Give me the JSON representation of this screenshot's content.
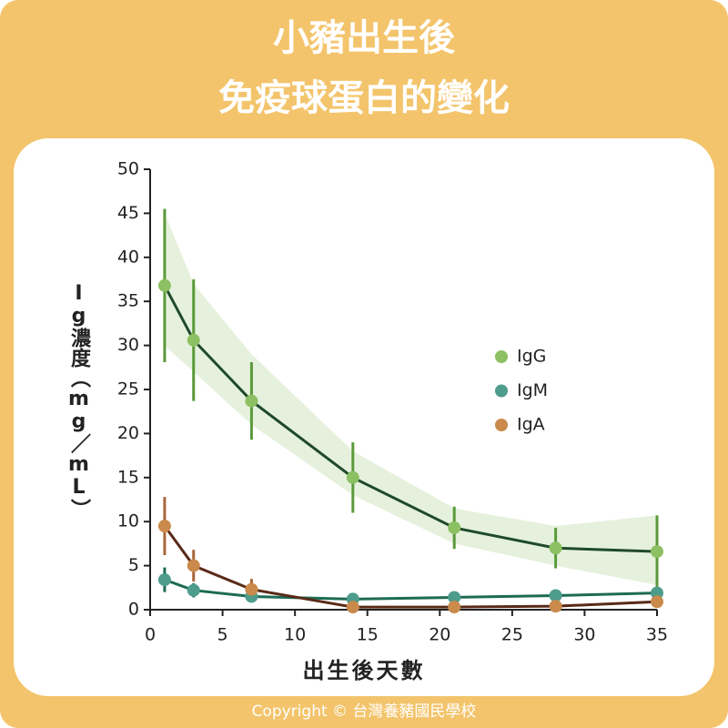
{
  "chart_data": {
    "type": "line",
    "title": "小豬出生後",
    "subtitle": "免疫球蛋白的變化",
    "xlabel": "出生後天數",
    "ylabel": "Ig濃度（mg／mL）",
    "copyright": "Copyright © 台灣養豬國民學校",
    "x": [
      1,
      3,
      7,
      14,
      21,
      28,
      35
    ],
    "xlim": [
      0,
      35
    ],
    "xticks": [
      0,
      5,
      10,
      15,
      20,
      25,
      30,
      35
    ],
    "ylim": [
      0,
      50
    ],
    "yticks": [
      0,
      5,
      10,
      15,
      20,
      25,
      30,
      35,
      40,
      45,
      50
    ],
    "legend": "right",
    "series": [
      {
        "name": "IgG",
        "color": "#8cc063",
        "line_color": "#1f4a2a",
        "error_color": "#5a9a3a",
        "band_color": "#e6f1dd",
        "values": [
          36.8,
          30.6,
          23.7,
          15.0,
          9.3,
          7.0,
          6.6
        ],
        "errors": [
          8.7,
          6.9,
          4.4,
          4.0,
          2.4,
          2.3,
          4.1
        ],
        "band_lower": [
          30,
          27,
          21,
          13,
          7.5,
          5,
          2.8
        ],
        "band_upper": [
          45,
          37,
          29,
          18,
          11.5,
          9.5,
          10.7
        ]
      },
      {
        "name": "IgM",
        "color": "#4e9c8c",
        "line_color": "#1d6b55",
        "error_color": "#1d6b55",
        "values": [
          3.4,
          2.2,
          1.5,
          1.2,
          1.4,
          1.6,
          1.9
        ],
        "errors": [
          1.4,
          0.8,
          0.5,
          0.2,
          0.2,
          0.2,
          0.3
        ]
      },
      {
        "name": "IgA",
        "color": "#c98a4b",
        "line_color": "#5a2a18",
        "error_color": "#a8663a",
        "values": [
          9.5,
          5.0,
          2.3,
          0.3,
          0.3,
          0.4,
          0.9
        ],
        "errors": [
          3.3,
          1.8,
          1.2,
          0.2,
          0.2,
          0.2,
          0.4
        ]
      }
    ]
  }
}
